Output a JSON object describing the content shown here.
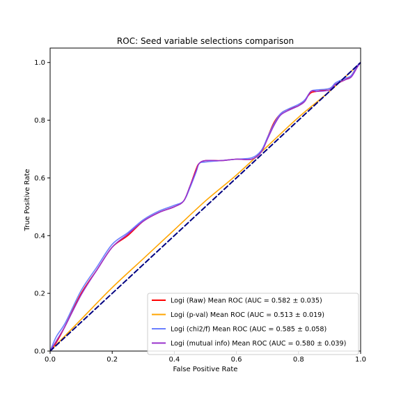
{
  "chart_data": {
    "type": "line",
    "title": "ROC: Seed variable selections comparison",
    "xlabel": "False Positive Rate",
    "ylabel": "True Positive Rate",
    "xlim": [
      0.0,
      1.0
    ],
    "ylim": [
      0.0,
      1.05
    ],
    "xticks": [
      0.0,
      0.2,
      0.4,
      0.6,
      0.8,
      1.0
    ],
    "yticks": [
      0.0,
      0.2,
      0.4,
      0.6,
      0.8,
      1.0
    ],
    "xtick_labels": [
      "0.0",
      "0.2",
      "0.4",
      "0.6",
      "0.8",
      "1.0"
    ],
    "ytick_labels": [
      "0.0",
      "0.2",
      "0.4",
      "0.6",
      "0.8",
      "1.0"
    ],
    "grid": false,
    "legend_position": "lower-right",
    "series": [
      {
        "name": "Logi (Raw) Mean ROC (AUC = 0.582 ± 0.035)",
        "color": "#ff0000",
        "x": [
          0.0,
          0.02,
          0.05,
          0.1,
          0.15,
          0.2,
          0.25,
          0.3,
          0.35,
          0.4,
          0.43,
          0.45,
          0.47,
          0.48,
          0.5,
          0.55,
          0.6,
          0.65,
          0.68,
          0.7,
          0.72,
          0.74,
          0.76,
          0.8,
          0.82,
          0.84,
          0.86,
          0.9,
          0.92,
          0.95,
          0.97,
          0.99,
          1.0
        ],
        "y": [
          0.0,
          0.03,
          0.09,
          0.2,
          0.28,
          0.36,
          0.4,
          0.45,
          0.48,
          0.5,
          0.52,
          0.57,
          0.63,
          0.65,
          0.66,
          0.66,
          0.665,
          0.665,
          0.69,
          0.74,
          0.79,
          0.82,
          0.835,
          0.85,
          0.87,
          0.895,
          0.9,
          0.91,
          0.925,
          0.94,
          0.955,
          0.99,
          1.0
        ]
      },
      {
        "name": "Logi (p-val) Mean ROC (AUC = 0.513 ± 0.019)",
        "color": "#ffa500",
        "x": [
          0.0,
          0.1,
          0.2,
          0.3,
          0.4,
          0.5,
          0.6,
          0.7,
          0.8,
          0.9,
          1.0
        ],
        "y": [
          0.0,
          0.11,
          0.22,
          0.32,
          0.42,
          0.52,
          0.61,
          0.71,
          0.81,
          0.9,
          1.0
        ]
      },
      {
        "name": "Logi (chi2/f) Mean ROC (AUC = 0.585 ± 0.058)",
        "color": "#6a7fff",
        "x": [
          0.0,
          0.02,
          0.05,
          0.1,
          0.15,
          0.2,
          0.25,
          0.3,
          0.35,
          0.4,
          0.43,
          0.45,
          0.47,
          0.48,
          0.5,
          0.55,
          0.6,
          0.65,
          0.68,
          0.7,
          0.72,
          0.74,
          0.76,
          0.8,
          0.82,
          0.84,
          0.86,
          0.9,
          0.92,
          0.95,
          0.97,
          0.99,
          1.0
        ],
        "y": [
          0.0,
          0.05,
          0.1,
          0.21,
          0.29,
          0.37,
          0.41,
          0.455,
          0.485,
          0.505,
          0.52,
          0.565,
          0.62,
          0.65,
          0.655,
          0.66,
          0.665,
          0.67,
          0.695,
          0.74,
          0.785,
          0.82,
          0.835,
          0.855,
          0.87,
          0.9,
          0.905,
          0.91,
          0.93,
          0.945,
          0.955,
          0.99,
          1.0
        ]
      },
      {
        "name": "Logi (mutual info) Mean ROC (AUC = 0.580 ± 0.039)",
        "color": "#9932cc",
        "x": [
          0.0,
          0.02,
          0.05,
          0.1,
          0.15,
          0.2,
          0.25,
          0.3,
          0.35,
          0.4,
          0.43,
          0.45,
          0.47,
          0.48,
          0.5,
          0.55,
          0.6,
          0.65,
          0.68,
          0.7,
          0.72,
          0.74,
          0.76,
          0.8,
          0.82,
          0.84,
          0.86,
          0.9,
          0.92,
          0.95,
          0.97,
          0.99,
          1.0
        ],
        "y": [
          0.0,
          0.035,
          0.09,
          0.195,
          0.28,
          0.36,
          0.405,
          0.45,
          0.48,
          0.5,
          0.52,
          0.57,
          0.625,
          0.65,
          0.66,
          0.66,
          0.665,
          0.665,
          0.69,
          0.735,
          0.78,
          0.815,
          0.83,
          0.85,
          0.865,
          0.9,
          0.9,
          0.905,
          0.925,
          0.94,
          0.95,
          0.985,
          1.0
        ]
      },
      {
        "name": "",
        "color": "#000080",
        "style": "dashed",
        "x": [
          0.0,
          1.0
        ],
        "y": [
          0.0,
          1.0
        ]
      }
    ]
  }
}
